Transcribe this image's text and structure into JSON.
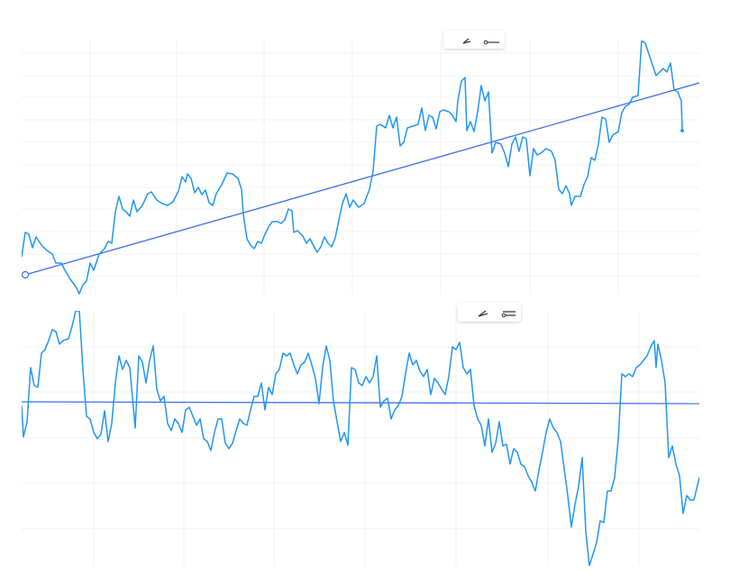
{
  "chart_data": [
    {
      "type": "line",
      "xlim": [
        0,
        752
      ],
      "ylim": [
        0,
        282
      ],
      "grid": true,
      "xticks": [
        76,
        172,
        269,
        367,
        465,
        564,
        662
      ],
      "yticks": [
        21,
        45,
        70,
        95,
        119,
        144,
        169,
        194,
        219,
        243,
        268
      ],
      "x": [
        0,
        4,
        8,
        12,
        16,
        22,
        28,
        34,
        38,
        44,
        48,
        54,
        60,
        64,
        68,
        72,
        76,
        80,
        86,
        92,
        96,
        100,
        104,
        108,
        112,
        116,
        120,
        124,
        128,
        134,
        140,
        144,
        150,
        156,
        162,
        168,
        174,
        178,
        182,
        184,
        188,
        192,
        196,
        200,
        204,
        208,
        212,
        216,
        222,
        228,
        234,
        240,
        244,
        246,
        250,
        254,
        258,
        262,
        266,
        270,
        274,
        278,
        284,
        288,
        292,
        296,
        300,
        302,
        306,
        312,
        316,
        320,
        324,
        328,
        332,
        336,
        340,
        344,
        348,
        352,
        356,
        360,
        364,
        368,
        374,
        380,
        386,
        390,
        394,
        398,
        404,
        408,
        412,
        416,
        420,
        424,
        428,
        434,
        440,
        444,
        448,
        452,
        456,
        460,
        464,
        468,
        474,
        478,
        482,
        484,
        488,
        492,
        494,
        498,
        502,
        506,
        510,
        514,
        518,
        522,
        526,
        532,
        536,
        540,
        544,
        548,
        552,
        556,
        560,
        564,
        568,
        572,
        576,
        582,
        588,
        592,
        596,
        600,
        604,
        608,
        610,
        614,
        620,
        624,
        628,
        632,
        636,
        640,
        644,
        648,
        652,
        656,
        662,
        666,
        670,
        674,
        678,
        684,
        688,
        692,
        696,
        700,
        704,
        708,
        712,
        716,
        720,
        724,
        728,
        732,
        733
      ],
      "series": [
        {
          "color": "#2196f3",
          "values": [
            42,
            69,
            67,
            52,
            64,
            55,
            49,
            45,
            35,
            35,
            27,
            17,
            9,
            1,
            11,
            15,
            35,
            27,
            45,
            51,
            59,
            57,
            92,
            109,
            95,
            92,
            87,
            105,
            92,
            99,
            112,
            114,
            105,
            101,
            99,
            103,
            115,
            131,
            125,
            134,
            129,
            113,
            119,
            111,
            116,
            102,
            99,
            112,
            122,
            135,
            134,
            129,
            117,
            89,
            62,
            55,
            51,
            59,
            57,
            67,
            75,
            81,
            81,
            79,
            83,
            95,
            93,
            69,
            71,
            65,
            57,
            62,
            54,
            47,
            53,
            64,
            57,
            53,
            63,
            83,
            101,
            112,
            97,
            105,
            97,
            101,
            117,
            137,
            187,
            189,
            185,
            199,
            185,
            197,
            165,
            169,
            185,
            187,
            189,
            207,
            182,
            199,
            197,
            184,
            203,
            205,
            203,
            199,
            192,
            215,
            237,
            241,
            182,
            192,
            181,
            203,
            232,
            215,
            225,
            157,
            169,
            167,
            157,
            142,
            167,
            175,
            159,
            175,
            173,
            132,
            162,
            155,
            157,
            162,
            159,
            149,
            117,
            112,
            121,
            112,
            99,
            109,
            109,
            122,
            131,
            152,
            149,
            167,
            197,
            195,
            169,
            177,
            181,
            202,
            209,
            211,
            219,
            221,
            282,
            279,
            267,
            255,
            243,
            247,
            251,
            247,
            257,
            227,
            225,
            215,
            182
          ]
        }
      ],
      "trend_line": {
        "color": "#3b6fe8",
        "x": [
          4,
          752
        ],
        "values": [
          22,
          235
        ]
      }
    },
    {
      "type": "line",
      "xlim": [
        0,
        752
      ],
      "ylim": [
        0,
        283
      ],
      "grid": true,
      "xticks": [
        80,
        180,
        280,
        381,
        482,
        584,
        685
      ],
      "yticks": [
        41,
        92,
        142,
        193,
        243
      ],
      "x": [
        0,
        2,
        6,
        10,
        14,
        18,
        22,
        26,
        30,
        34,
        38,
        42,
        46,
        52,
        56,
        60,
        64,
        68,
        72,
        76,
        80,
        84,
        88,
        92,
        96,
        100,
        104,
        108,
        112,
        116,
        120,
        124,
        126,
        130,
        134,
        138,
        142,
        146,
        150,
        154,
        158,
        162,
        166,
        170,
        174,
        178,
        182,
        186,
        190,
        194,
        198,
        202,
        206,
        210,
        214,
        218,
        222,
        226,
        230,
        234,
        238,
        242,
        246,
        250,
        254,
        258,
        262,
        266,
        270,
        274,
        278,
        282,
        286,
        290,
        294,
        298,
        302,
        306,
        310,
        314,
        318,
        322,
        326,
        330,
        334,
        338,
        342,
        346,
        350,
        354,
        358,
        362,
        366,
        370,
        374,
        378,
        382,
        386,
        390,
        394,
        398,
        402,
        406,
        410,
        414,
        418,
        422,
        426,
        430,
        434,
        438,
        442,
        446,
        450,
        454,
        458,
        462,
        466,
        470,
        474,
        478,
        482,
        486,
        490,
        494,
        498,
        502,
        506,
        510,
        514,
        518,
        522,
        526,
        530,
        534,
        538,
        542,
        546,
        550,
        554,
        558,
        562,
        566,
        570,
        574,
        578,
        582,
        586,
        590,
        594,
        598,
        602,
        606,
        610,
        614,
        618,
        622,
        626,
        630,
        634,
        638,
        642,
        646,
        650,
        654,
        658,
        662,
        666,
        670,
        674,
        678,
        682,
        686,
        690,
        694,
        698,
        702,
        704,
        706,
        710,
        714,
        718,
        722,
        726,
        730,
        734,
        738,
        742,
        746,
        752
      ],
      "series": [
        {
          "color": "#2196f3",
          "values": [
            178,
            143,
            160,
            220,
            200,
            198,
            236,
            240,
            250,
            262,
            260,
            246,
            250,
            252,
            266,
            283,
            283,
            218,
            166,
            163,
            148,
            141,
            146,
            172,
            138,
            158,
            203,
            233,
            218,
            228,
            220,
            176,
            153,
            233,
            226,
            203,
            228,
            244,
            196,
            183,
            188,
            158,
            150,
            163,
            158,
            148,
            173,
            176,
            166,
            156,
            163,
            141,
            138,
            128,
            148,
            163,
            163,
            136,
            130,
            136,
            150,
            163,
            158,
            156,
            173,
            188,
            188,
            203,
            173,
            198,
            190,
            213,
            218,
            236,
            233,
            236,
            223,
            213,
            223,
            226,
            236,
            223,
            208,
            180,
            220,
            244,
            228,
            183,
            160,
            138,
            148,
            134,
            220,
            218,
            203,
            200,
            210,
            203,
            210,
            233,
            176,
            183,
            186,
            163,
            173,
            178,
            188,
            213,
            236,
            223,
            228,
            216,
            210,
            218,
            190,
            208,
            203,
            196,
            190,
            210,
            243,
            240,
            248,
            220,
            213,
            218,
            178,
            163,
            156,
            133,
            163,
            126,
            136,
            160,
            133,
            135,
            113,
            130,
            126,
            113,
            110,
            100,
            93,
            83,
            106,
            126,
            148,
            163,
            153,
            148,
            138,
            108,
            78,
            43,
            68,
            88,
            120,
            38,
            0,
            13,
            26,
            50,
            48,
            83,
            83,
            98,
            140,
            213,
            210,
            213,
            210,
            220,
            223,
            228,
            233,
            243,
            250,
            220,
            246,
            228,
            203,
            120,
            133,
            113,
            100,
            58,
            78,
            73,
            73,
            98
          ]
        }
      ],
      "reference_line": {
        "color": "#3b6fe8",
        "x": [
          0,
          752
        ],
        "values": [
          182,
          180
        ]
      }
    }
  ]
}
